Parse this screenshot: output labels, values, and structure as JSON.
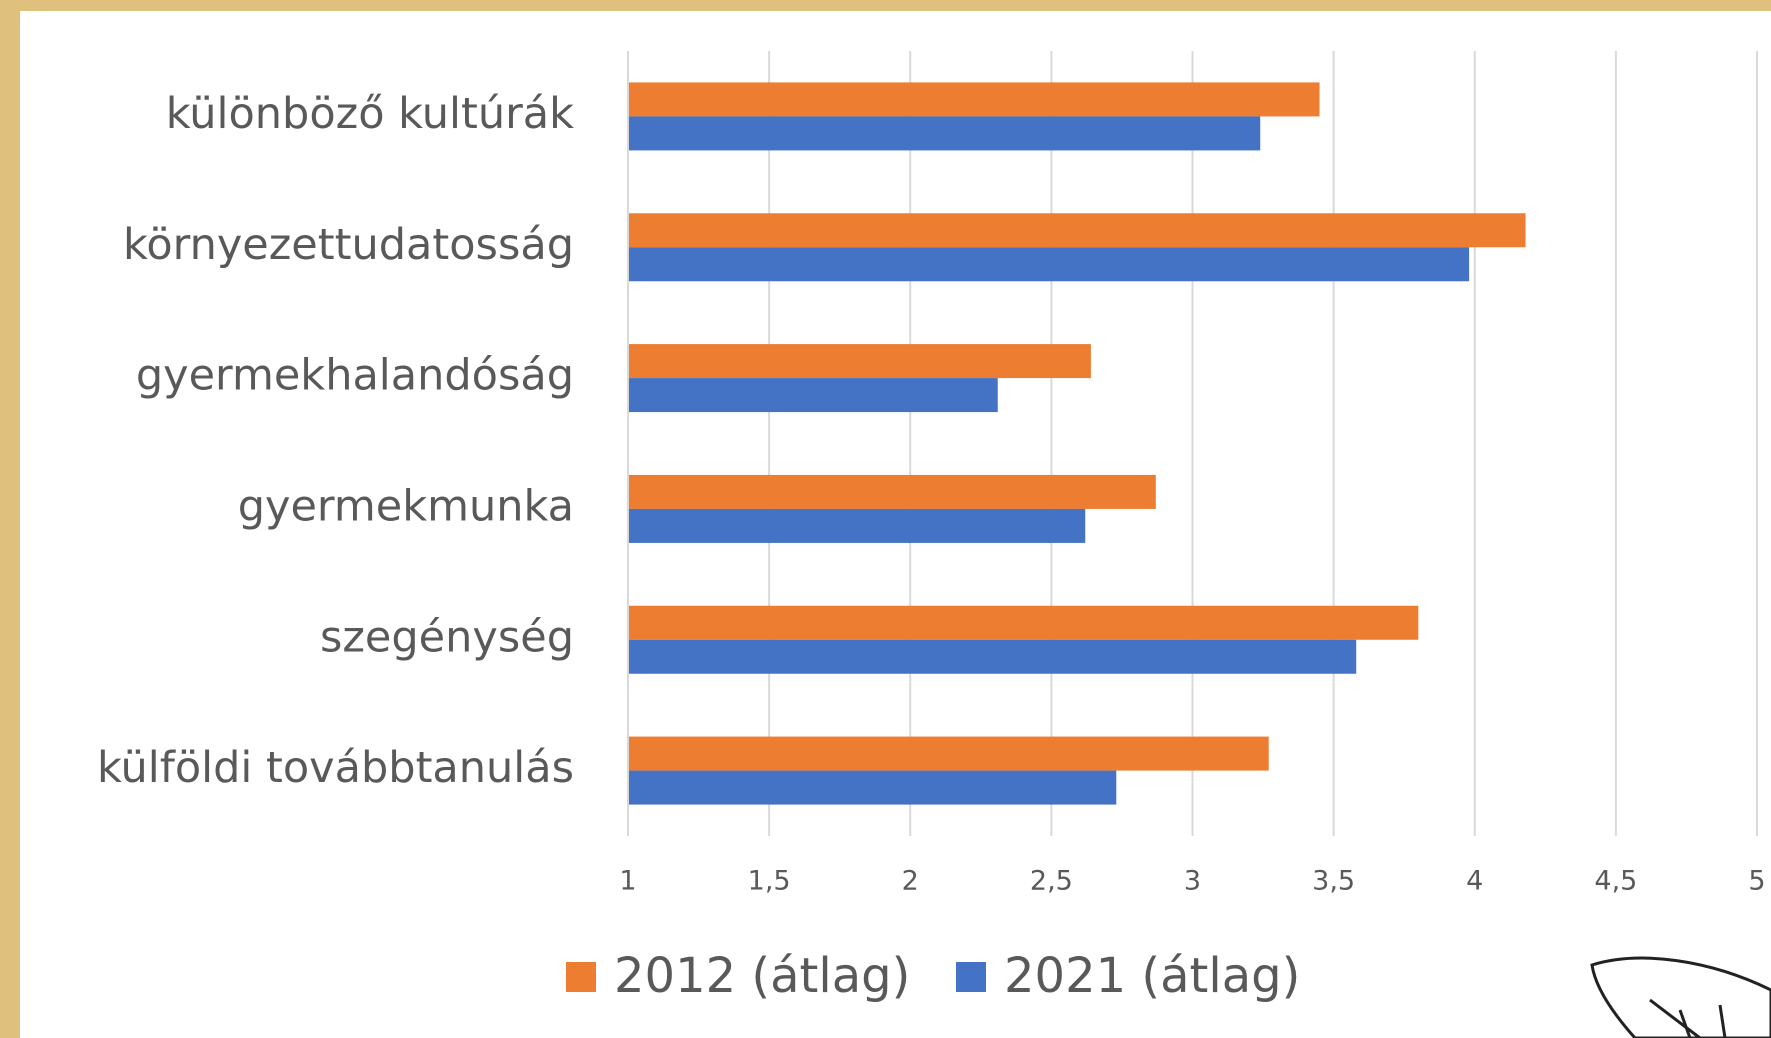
{
  "chart_data": {
    "type": "bar",
    "orientation": "horizontal",
    "categories": [
      "különböző kultúrák",
      "környezettudatosság",
      "gyermekhalandóság",
      "gyermekmunka",
      "szegénység",
      "külföldi továbbtanulás"
    ],
    "series": [
      {
        "name": "2012 (átlag)",
        "color": "#ed7d31",
        "values": [
          3.45,
          4.18,
          2.64,
          2.87,
          3.8,
          3.27
        ]
      },
      {
        "name": "2021 (átlag)",
        "color": "#4472c4",
        "values": [
          3.24,
          3.98,
          2.31,
          2.62,
          3.58,
          2.73
        ]
      }
    ],
    "xlim": [
      1,
      5
    ],
    "xticks": [
      1,
      {
        "value": 1.5,
        "label": "1,5"
      },
      2,
      {
        "value": 2.5,
        "label": "2,5"
      },
      3,
      {
        "value": 3.5,
        "label": "3,5"
      },
      4,
      {
        "value": 4.5,
        "label": "4,5"
      },
      5
    ],
    "grid": true,
    "legend": "bottom"
  }
}
